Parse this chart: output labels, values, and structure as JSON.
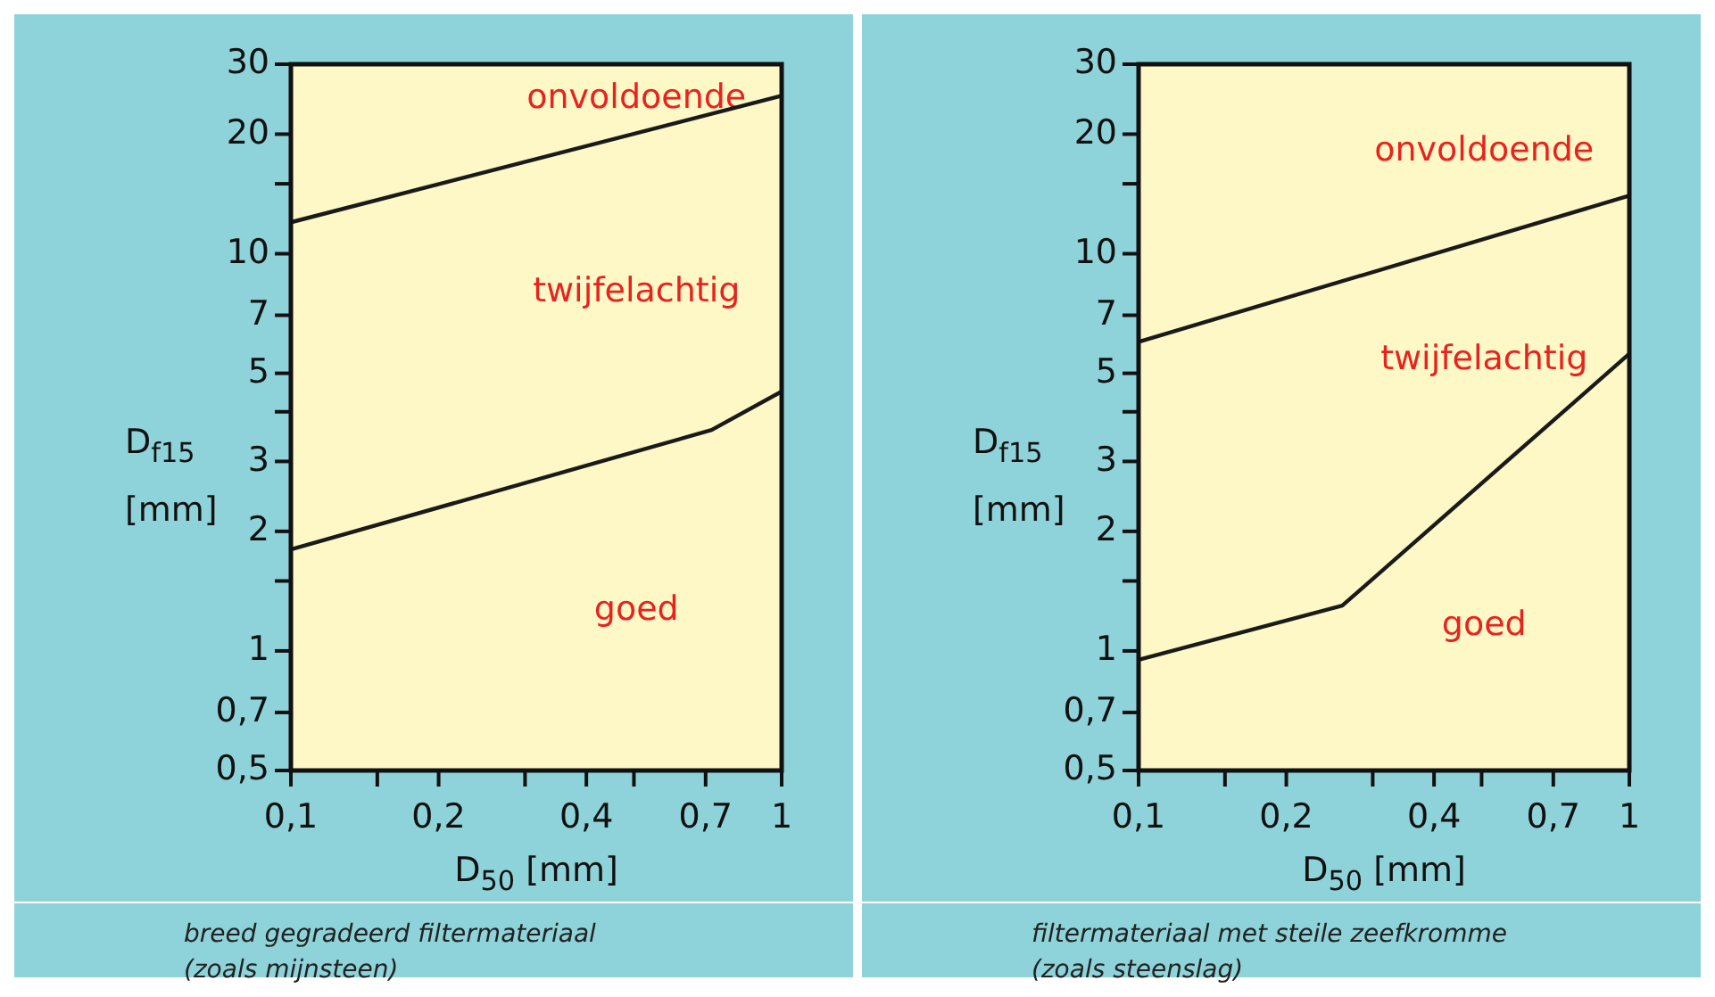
{
  "chart_data": [
    {
      "type": "line",
      "xlabel": "D$_{50}$  [mm]",
      "ylabel": "D$_{f15}$\n[mm]",
      "log": "xy",
      "grid": false,
      "marker": "none",
      "line_style": "solid",
      "xlim": [
        0.1,
        1
      ],
      "xticks": [
        {
          "value": 0.1,
          "label": "0,1"
        },
        {
          "value": 0.15,
          "label": null
        },
        {
          "value": 0.2,
          "label": "0,2"
        },
        {
          "value": 0.3,
          "label": null
        },
        {
          "value": 0.4,
          "label": "0,4"
        },
        {
          "value": 0.5,
          "label": null
        },
        {
          "value": 0.7,
          "label": "0,7"
        },
        1
      ],
      "ylim": [
        0.5,
        30
      ],
      "yticks": [
        {
          "value": 0.5,
          "label": "0,5"
        },
        {
          "value": 0.7,
          "label": "0,7"
        },
        1,
        {
          "value": 1.5,
          "label": null
        },
        2,
        3,
        {
          "value": 4,
          "label": null
        },
        5,
        7,
        10,
        {
          "value": 15,
          "label": null
        },
        20,
        30
      ],
      "series": [
        {
          "color": "#1a1a1a",
          "x": [
            0.1,
            1
          ],
          "values": [
            12,
            25
          ]
        },
        {
          "color": "#1a1a1a",
          "x": [
            0.1,
            0.72,
            1
          ],
          "values": [
            1.8,
            3.6,
            4.5
          ]
        }
      ],
      "annotations": [
        "onvoldoende",
        "twijfelachtig",
        "goed",
        "breed gegradeerd filtermateriaal\n(zoals mijnsteen)"
      ]
    },
    {
      "type": "line",
      "xlabel": "D$_{50}$  [mm]",
      "ylabel": "D$_{f15}$\n[mm]",
      "log": "xy",
      "grid": false,
      "marker": "none",
      "line_style": "solid",
      "xlim": [
        0.1,
        1
      ],
      "xticks": [
        {
          "value": 0.1,
          "label": "0,1"
        },
        {
          "value": 0.15,
          "label": null
        },
        {
          "value": 0.2,
          "label": "0,2"
        },
        {
          "value": 0.3,
          "label": null
        },
        {
          "value": 0.4,
          "label": "0,4"
        },
        {
          "value": 0.5,
          "label": null
        },
        {
          "value": 0.7,
          "label": "0,7"
        },
        1
      ],
      "ylim": [
        0.5,
        30
      ],
      "yticks": [
        {
          "value": 0.5,
          "label": "0,5"
        },
        {
          "value": 0.7,
          "label": "0,7"
        },
        1,
        {
          "value": 1.5,
          "label": null
        },
        2,
        3,
        {
          "value": 4,
          "label": null
        },
        5,
        7,
        10,
        {
          "value": 15,
          "label": null
        },
        20,
        30
      ],
      "series": [
        {
          "color": "#1a1a1a",
          "x": [
            0.1,
            1
          ],
          "values": [
            6,
            14
          ]
        },
        {
          "color": "#1a1a1a",
          "x": [
            0.1,
            0.26,
            1
          ],
          "values": [
            0.95,
            1.3,
            5.6
          ]
        }
      ],
      "annotations": [
        "onvoldoende",
        "twijfelachtig",
        "goed",
        "filtermateriaal met steile zeefkromme\n(zoals steenslag)"
      ]
    }
  ]
}
